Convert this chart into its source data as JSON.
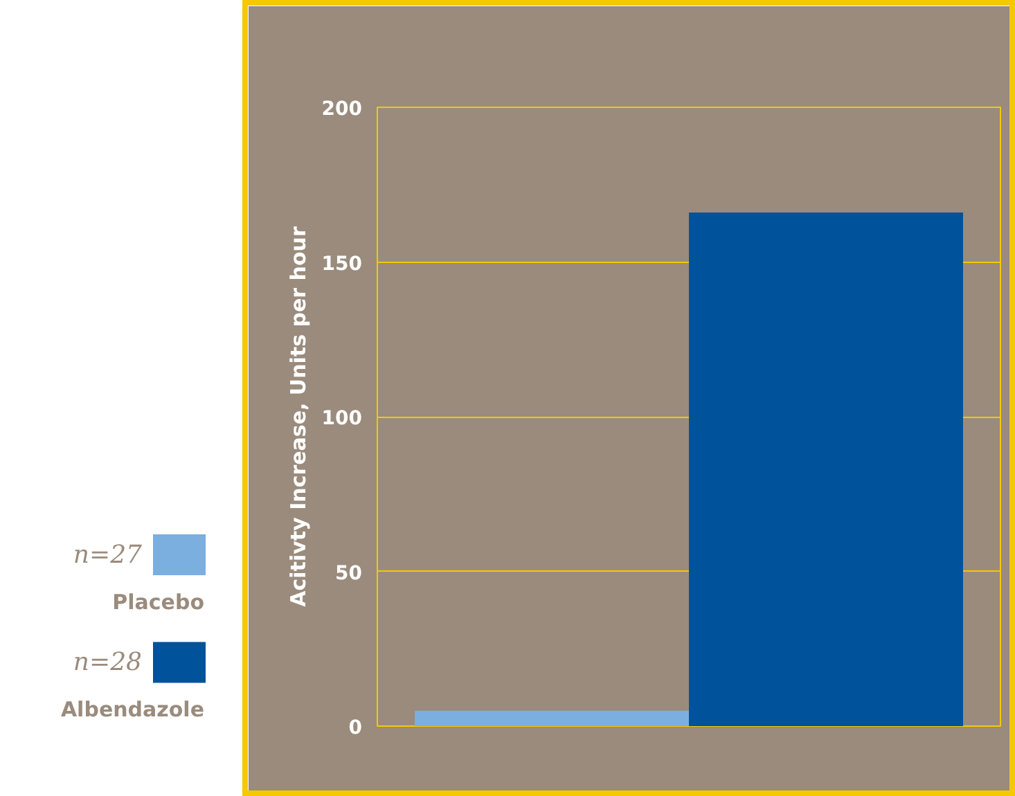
{
  "chart_data": {
    "type": "bar",
    "ylabel": "Acitivty Increase, Units per hour",
    "categories": [
      null
    ],
    "series": [
      {
        "name": "Placebo",
        "color": "#7aafdf",
        "values": [
          5
        ]
      },
      {
        "name": "Albendazole",
        "color": "#00529b",
        "values": [
          166
        ]
      }
    ],
    "annotations": [
      "n=27",
      "n=28"
    ],
    "ylim": [
      0,
      200
    ],
    "yticks": [
      0,
      50,
      100,
      150,
      200
    ],
    "grid": "y",
    "legend": "left",
    "tick_labels": "y"
  }
}
